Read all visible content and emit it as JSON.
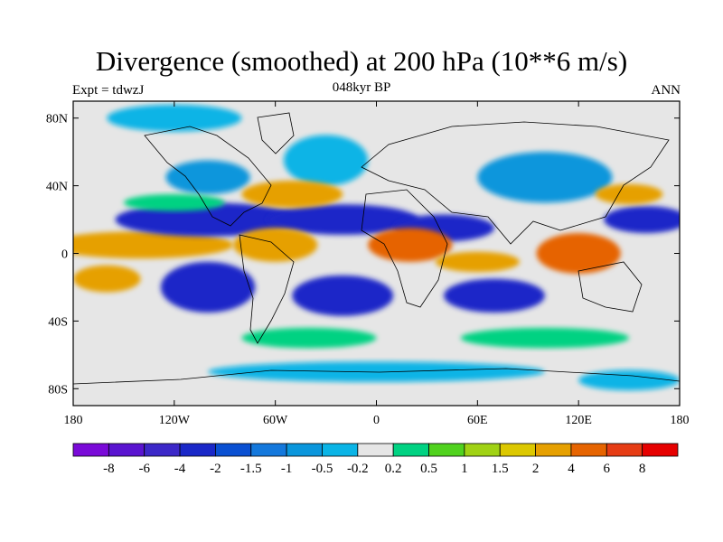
{
  "title": "Divergence (smoothed) at 200 hPa (10**6 m/s)",
  "left_note": "Expt = tdwzJ",
  "center_note": "048kyr BP",
  "right_note": "ANN",
  "chart_data": {
    "type": "heatmap",
    "title": "Divergence (smoothed) at 200 hPa (10**6 m/s)",
    "xlabel": "",
    "ylabel": "",
    "xlim": [
      -180,
      180
    ],
    "ylim": [
      -90,
      90
    ],
    "lat_ticks": [
      {
        "value": 80,
        "label": "80N"
      },
      {
        "value": 40,
        "label": "40N"
      },
      {
        "value": 0,
        "label": "0"
      },
      {
        "value": -40,
        "label": "40S"
      },
      {
        "value": -80,
        "label": "80S"
      }
    ],
    "lon_ticks": [
      {
        "value": -180,
        "label": "180"
      },
      {
        "value": -120,
        "label": "120W"
      },
      {
        "value": -60,
        "label": "60W"
      },
      {
        "value": 0,
        "label": "0"
      },
      {
        "value": 60,
        "label": "60E"
      },
      {
        "value": 120,
        "label": "120E"
      },
      {
        "value": 180,
        "label": "180"
      }
    ],
    "colorbar": {
      "labels": [
        "-8",
        "-6",
        "-4",
        "-2",
        "-1.5",
        "-1",
        "-0.5",
        "-0.2",
        "0.2",
        "0.5",
        "1",
        "1.5",
        "2",
        "4",
        "6",
        "8"
      ],
      "colors": [
        "#7a0ad8",
        "#5a14d0",
        "#3c28c8",
        "#1a28c8",
        "#0a50d2",
        "#1478dc",
        "#0a96dc",
        "#0ab4e6",
        "#e6e6e6",
        "#00d282",
        "#50d21e",
        "#a0d214",
        "#dcc800",
        "#e6a000",
        "#e66400",
        "#e63c14",
        "#e60000"
      ]
    },
    "regions": [
      {
        "lon": -140,
        "lat": 5,
        "rx": 55,
        "ry": 8,
        "color": "#e6a000"
      },
      {
        "lon": -100,
        "lat": 20,
        "rx": 55,
        "ry": 10,
        "color": "#1a28c8"
      },
      {
        "lon": -20,
        "lat": 20,
        "rx": 45,
        "ry": 9,
        "color": "#1a28c8"
      },
      {
        "lon": 40,
        "lat": 15,
        "rx": 30,
        "ry": 8,
        "color": "#1a28c8"
      },
      {
        "lon": 160,
        "lat": 20,
        "rx": 25,
        "ry": 8,
        "color": "#1a28c8"
      },
      {
        "lon": -100,
        "lat": -20,
        "rx": 28,
        "ry": 15,
        "color": "#1a28c8"
      },
      {
        "lon": -20,
        "lat": -25,
        "rx": 30,
        "ry": 12,
        "color": "#1a28c8"
      },
      {
        "lon": 70,
        "lat": -25,
        "rx": 30,
        "ry": 10,
        "color": "#1a28c8"
      },
      {
        "lon": -60,
        "lat": 5,
        "rx": 25,
        "ry": 10,
        "color": "#e6a000"
      },
      {
        "lon": 20,
        "lat": 5,
        "rx": 25,
        "ry": 10,
        "color": "#e66400"
      },
      {
        "lon": 120,
        "lat": 0,
        "rx": 25,
        "ry": 12,
        "color": "#e66400"
      },
      {
        "lon": 60,
        "lat": -5,
        "rx": 25,
        "ry": 6,
        "color": "#e6a000"
      },
      {
        "lon": -160,
        "lat": -15,
        "rx": 20,
        "ry": 8,
        "color": "#e6a000"
      },
      {
        "lon": -100,
        "lat": 45,
        "rx": 25,
        "ry": 10,
        "color": "#0a96dc"
      },
      {
        "lon": -30,
        "lat": 55,
        "rx": 25,
        "ry": 15,
        "color": "#0ab4e6"
      },
      {
        "lon": 100,
        "lat": 45,
        "rx": 40,
        "ry": 15,
        "color": "#0a96dc"
      },
      {
        "lon": -120,
        "lat": 80,
        "rx": 40,
        "ry": 8,
        "color": "#0ab4e6"
      },
      {
        "lon": 0,
        "lat": -70,
        "rx": 100,
        "ry": 6,
        "color": "#0ab4e6"
      },
      {
        "lon": 150,
        "lat": -75,
        "rx": 30,
        "ry": 6,
        "color": "#0ab4e6"
      },
      {
        "lon": -120,
        "lat": 30,
        "rx": 30,
        "ry": 5,
        "color": "#00d282"
      },
      {
        "lon": -50,
        "lat": 35,
        "rx": 30,
        "ry": 8,
        "color": "#e6a000"
      },
      {
        "lon": 150,
        "lat": 35,
        "rx": 20,
        "ry": 6,
        "color": "#e6a000"
      },
      {
        "lon": -40,
        "lat": -50,
        "rx": 40,
        "ry": 6,
        "color": "#00d282"
      },
      {
        "lon": 100,
        "lat": -50,
        "rx": 50,
        "ry": 6,
        "color": "#00d282"
      }
    ]
  }
}
